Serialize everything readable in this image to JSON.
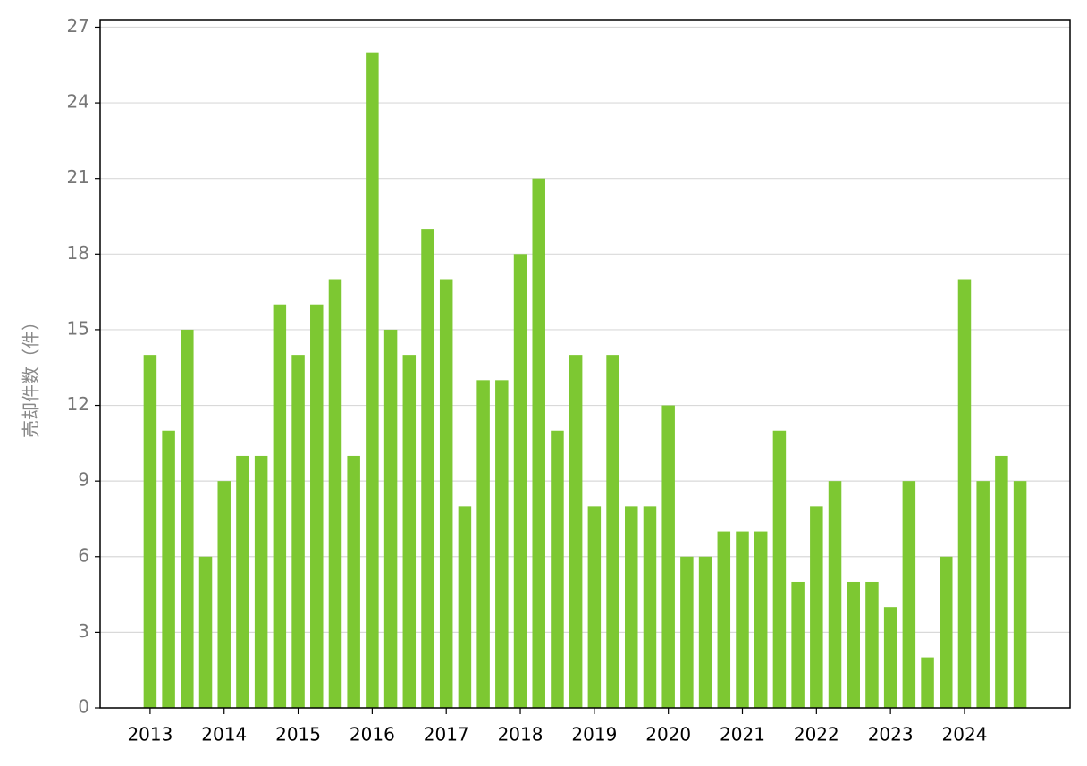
{
  "chart_data": {
    "type": "bar",
    "y_label": "売却件数（件）",
    "categories": [
      "2013",
      null,
      null,
      null,
      "2014",
      null,
      null,
      null,
      "2015",
      null,
      null,
      null,
      "2016",
      null,
      null,
      null,
      "2017",
      null,
      null,
      null,
      "2018",
      null,
      null,
      null,
      "2019",
      null,
      null,
      null,
      "2020",
      null,
      null,
      null,
      "2021",
      null,
      null,
      null,
      "2022",
      null,
      null,
      null,
      "2023",
      null,
      null,
      null,
      "2024",
      null,
      null,
      null
    ],
    "values": [
      14,
      11,
      15,
      6,
      9,
      10,
      10,
      16,
      14,
      16,
      17,
      10,
      26,
      15,
      14,
      19,
      17,
      8,
      13,
      13,
      18,
      21,
      11,
      14,
      8,
      14,
      8,
      8,
      12,
      6,
      6,
      7,
      7,
      7,
      11,
      5,
      8,
      9,
      5,
      5,
      4,
      9,
      2,
      6,
      17,
      9,
      10,
      9
    ],
    "color": "#7dc832",
    "ylim": [
      0,
      27.3
    ],
    "yticks": [
      0,
      3,
      6,
      9,
      12,
      15,
      18,
      21,
      24,
      27
    ],
    "grid": true
  }
}
